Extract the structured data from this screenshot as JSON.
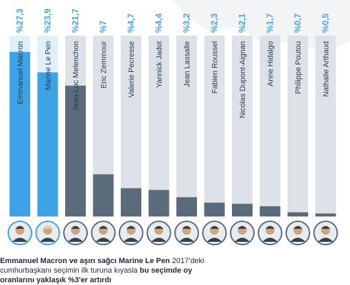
{
  "chart_data": {
    "type": "bar",
    "orientation": "vertical",
    "ylim": [
      0,
      30
    ],
    "value_prefix": "%",
    "decimal_separator": ",",
    "categories": [
      "Emmanuel Macron",
      "Marine Le Pen",
      "Jean-Luc Melenchon",
      "Eric Zemmour",
      "Valerie Pecresse",
      "Yannick Jadot",
      "Jean Lassalle",
      "Fabien Roussel",
      "Nicolas Dupont-Aignan",
      "Anne Hidalgo",
      "Philippe Poutou",
      "Nathalie Arthaud"
    ],
    "values": [
      27.3,
      23.9,
      21.7,
      7,
      4.7,
      4.4,
      3.2,
      2.3,
      2.1,
      1.7,
      0.7,
      0.5
    ],
    "labels": [
      "%27,3",
      "%23,9",
      "%21,7",
      "%7",
      "%4,7",
      "%4,4",
      "%3,2",
      "%2,3",
      "%2,1",
      "%1,7",
      "%0,7",
      "%0,5"
    ],
    "highlighted": [
      0,
      1
    ],
    "colors": {
      "highlight_fill": "#3da2e6",
      "highlight_bg": "#dff0fb",
      "normal_fill": "#5a6b7c",
      "normal_bg": "#dde2e8",
      "label": "#4aa3df",
      "name_dark": "#2b3a4a"
    }
  },
  "caption": {
    "line1_bold": "Emmanuel Macron ve aşırı sağcı Marine Le Pen",
    "line1_normal": " 2017'deki",
    "line2_normal": "cumhurbaşkanı seçimin ilk turuna kıyasla ",
    "line2_bold": "bu seçimde oy",
    "line3_bold": "oranlarını yaklaşık %3'er artırdı"
  },
  "portraits": {
    "icon": "candidate-portrait-icon",
    "highlight_ring": "#3da2e6",
    "normal_ring": "#5a6b7c"
  }
}
